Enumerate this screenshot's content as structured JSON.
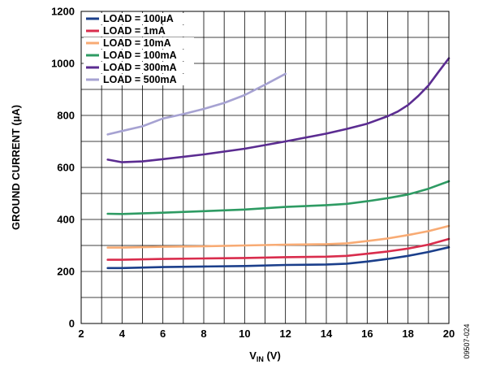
{
  "chart_data": {
    "type": "line",
    "xlabel_main": "V",
    "xlabel_sub": "IN",
    "xlabel_unit": " (V)",
    "ylabel": "GROUND CURRENT (µA)",
    "xlim": [
      2,
      20
    ],
    "ylim": [
      0,
      1200
    ],
    "x_ticks": [
      2,
      4,
      6,
      8,
      10,
      12,
      14,
      16,
      18,
      20
    ],
    "y_ticks": [
      0,
      200,
      400,
      600,
      800,
      1000,
      1200
    ],
    "x_tick_labels": [
      "2",
      "4",
      "6",
      "8",
      "10",
      "12",
      "14",
      "16",
      "18",
      "20"
    ],
    "y_tick_labels": [
      "0",
      "200",
      "400",
      "600",
      "800",
      "1000",
      "1200"
    ],
    "grid": true,
    "legend_position": "top-left",
    "figure_id": "09507-024",
    "series": [
      {
        "name": "LOAD = 100µA",
        "color": "#1b3f8b",
        "x": [
          3.3,
          4,
          5,
          6,
          8,
          10,
          12,
          14,
          15,
          16,
          17,
          18,
          19,
          20
        ],
        "y": [
          213,
          213,
          215,
          217,
          219,
          221,
          225,
          227,
          230,
          238,
          248,
          260,
          275,
          293
        ]
      },
      {
        "name": "LOAD = 1mA",
        "color": "#d92d4d",
        "x": [
          3.3,
          4,
          6,
          8,
          10,
          12,
          14,
          15,
          16,
          17,
          18,
          19,
          20
        ],
        "y": [
          245,
          245,
          248,
          250,
          252,
          255,
          257,
          260,
          268,
          277,
          288,
          303,
          325
        ]
      },
      {
        "name": "LOAD = 10mA",
        "color": "#f8ab74",
        "x": [
          3.3,
          4,
          6,
          8,
          10,
          12,
          14,
          15,
          16,
          17,
          18,
          19,
          20
        ],
        "y": [
          292,
          292,
          295,
          297,
          300,
          303,
          305,
          308,
          317,
          327,
          340,
          355,
          375
        ]
      },
      {
        "name": "LOAD = 100mA",
        "color": "#2e9b63",
        "x": [
          3.3,
          4,
          6,
          8,
          10,
          12,
          14,
          15,
          16,
          17,
          18,
          19,
          20
        ],
        "y": [
          422,
          421,
          426,
          432,
          438,
          448,
          455,
          460,
          470,
          482,
          496,
          518,
          547
        ]
      },
      {
        "name": "LOAD = 300mA",
        "color": "#5b2c91",
        "x": [
          3.3,
          4,
          5,
          6,
          8,
          10,
          12,
          14,
          15,
          16,
          17,
          17.5,
          18,
          18.5,
          19,
          19.5,
          20
        ],
        "y": [
          630,
          620,
          623,
          632,
          650,
          672,
          700,
          730,
          748,
          768,
          797,
          815,
          840,
          875,
          915,
          968,
          1020
        ]
      },
      {
        "name": "LOAD = 500mA",
        "color": "#a6a2d2",
        "x": [
          3.3,
          4,
          5,
          6,
          7,
          8,
          9,
          10,
          11,
          12
        ],
        "y": [
          727,
          740,
          758,
          788,
          805,
          825,
          848,
          878,
          918,
          960
        ]
      }
    ]
  }
}
